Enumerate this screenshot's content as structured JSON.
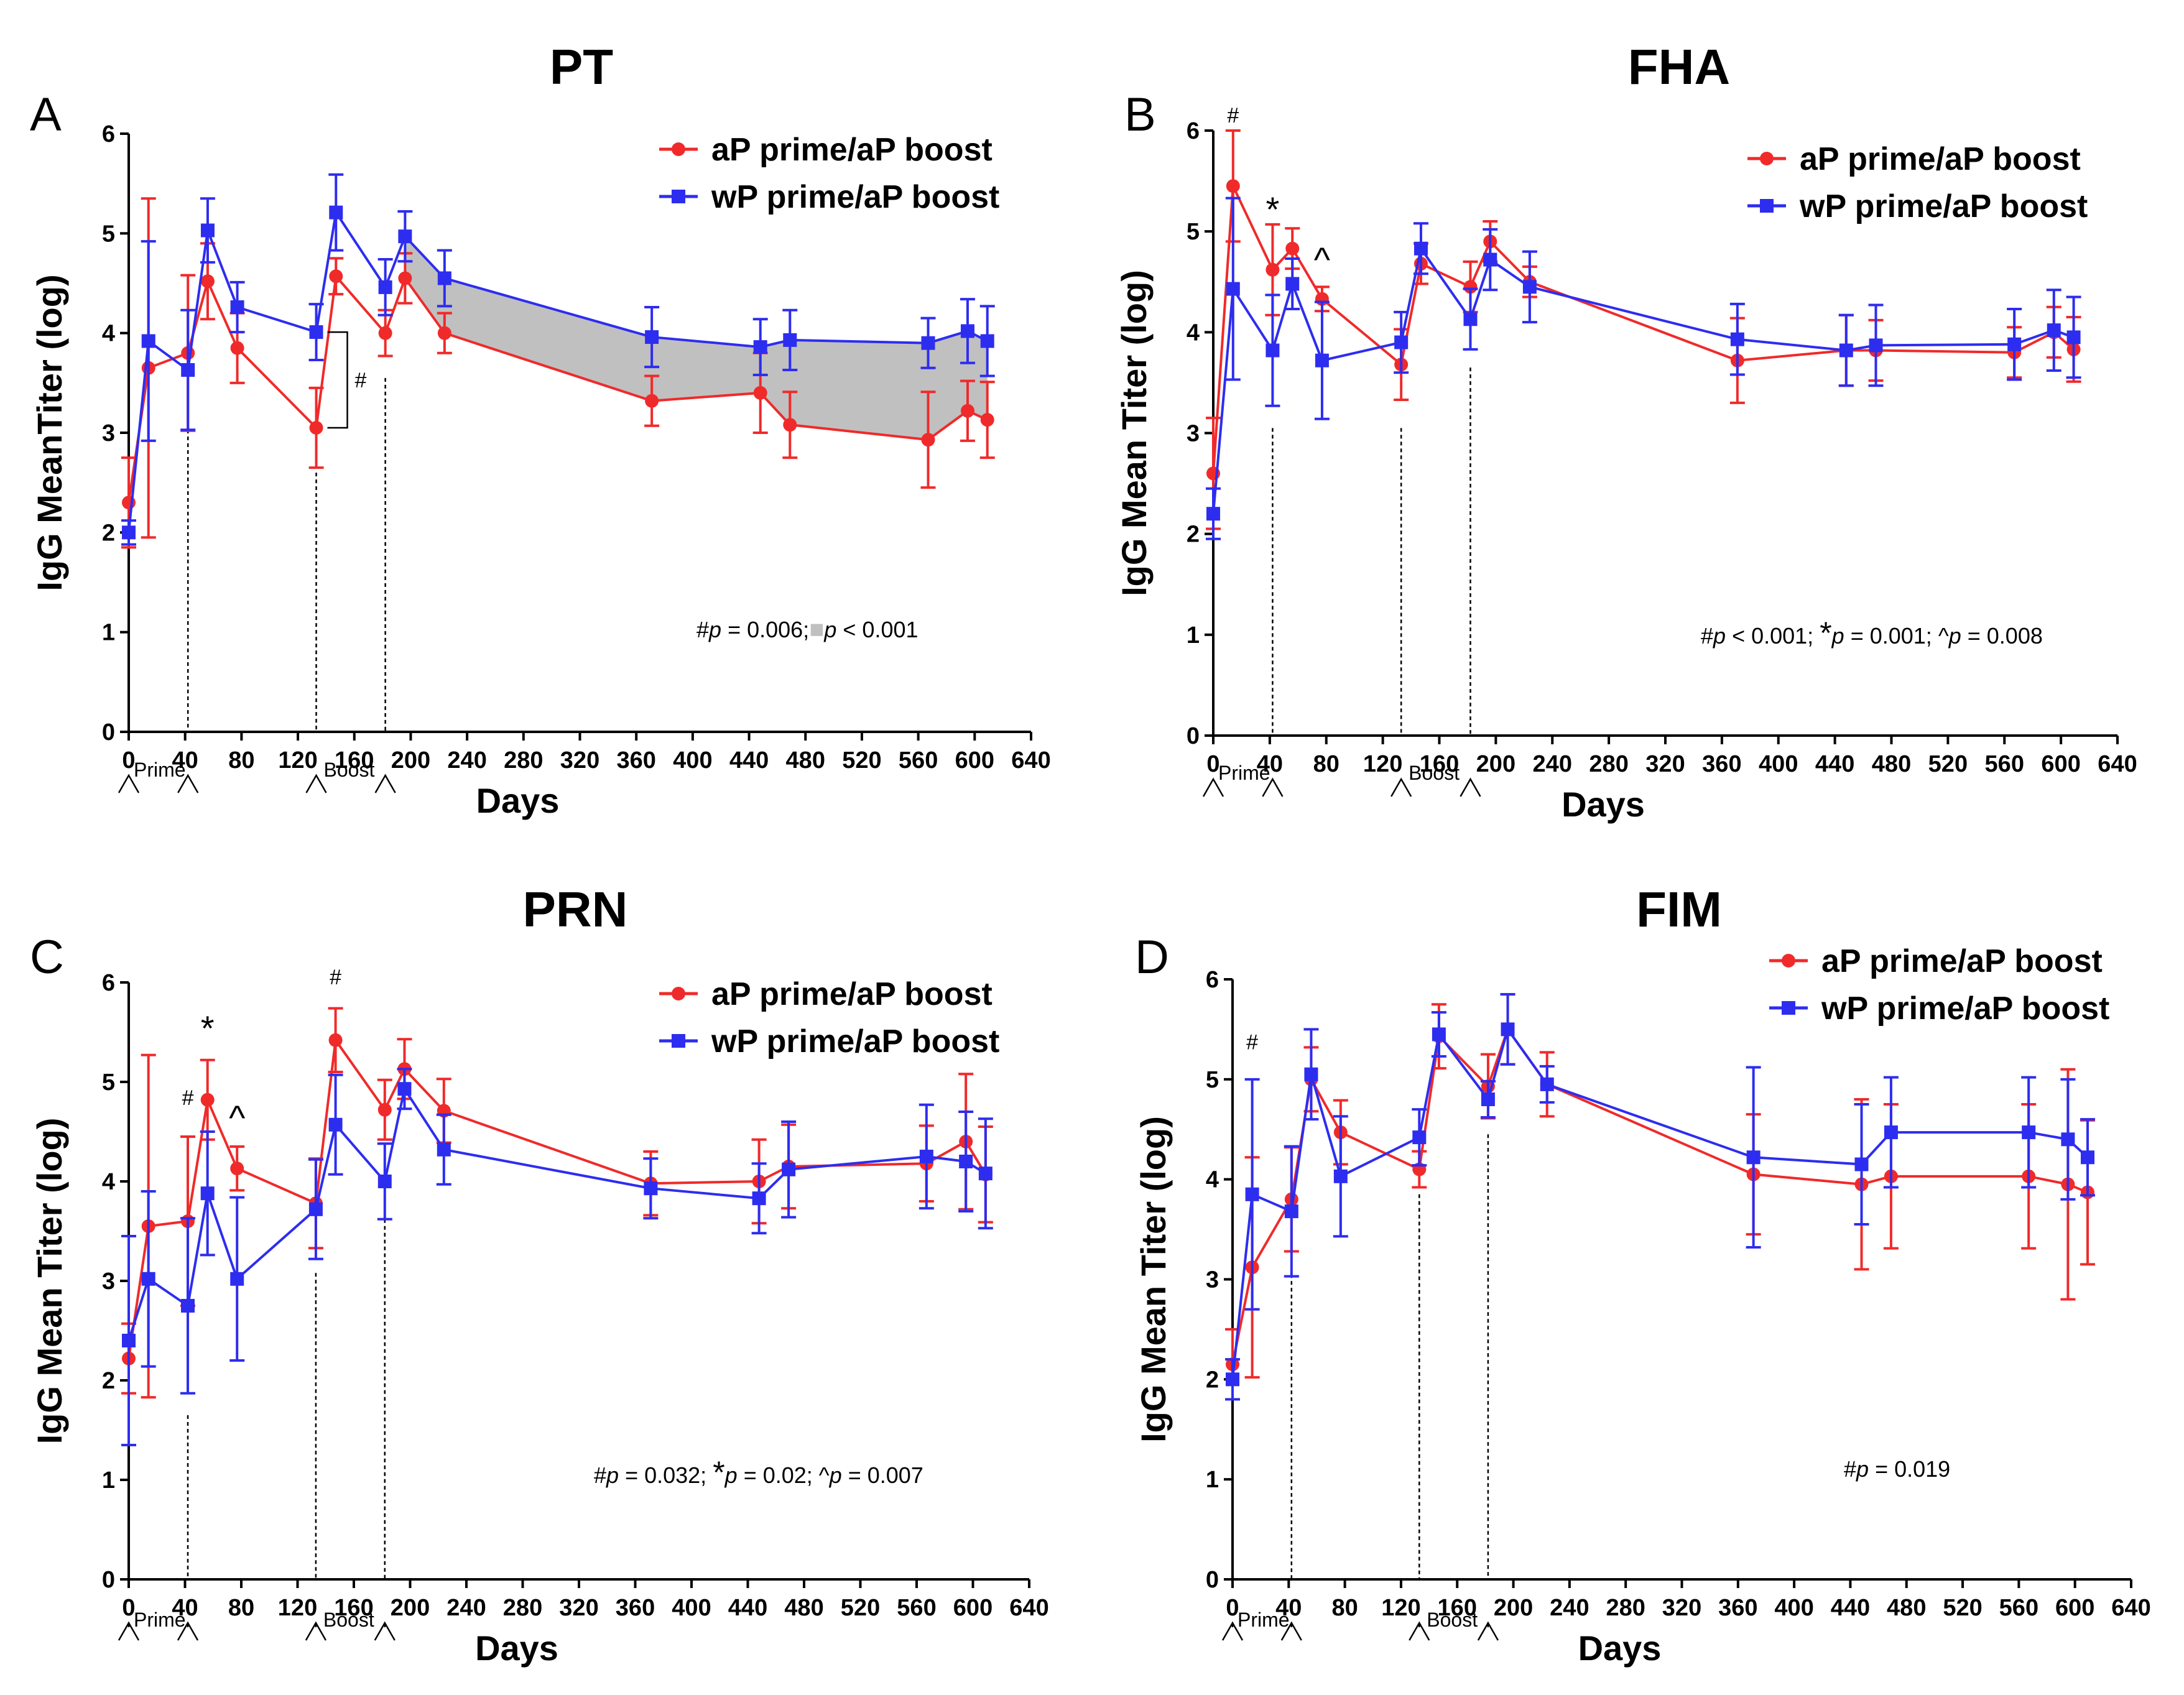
{
  "figure": {
    "legend_ap": "aP prime/aP boost",
    "legend_wp": "wP prime/aP boost",
    "xlabel": "Days",
    "colors": {
      "ap": "#f02a2a",
      "wp": "#2d2df0",
      "band": "#c0c0c0",
      "axis": "#000000"
    }
  },
  "chart_data": [
    {
      "id": "A",
      "type": "line",
      "letter": "A",
      "title": "PT",
      "ylabel": "IgG MeanTiter (log)",
      "xlabel": "Days",
      "xlim": [
        0,
        640
      ],
      "ylim": [
        0,
        6
      ],
      "xticks": [
        0,
        40,
        80,
        120,
        160,
        200,
        240,
        280,
        320,
        360,
        400,
        440,
        480,
        520,
        560,
        600,
        640
      ],
      "yticks": [
        0,
        1,
        2,
        3,
        4,
        5,
        6
      ],
      "legend_position": "top-right",
      "series": [
        {
          "name": "aP prime/aP boost",
          "key": "ap",
          "x": [
            0,
            14,
            42,
            56,
            77,
            133,
            147,
            182,
            196,
            224,
            371,
            448,
            469,
            567,
            595,
            609
          ],
          "y": [
            2.3,
            3.65,
            3.8,
            4.52,
            3.85,
            3.05,
            4.57,
            4.0,
            4.55,
            4.0,
            3.32,
            3.4,
            3.08,
            2.93,
            3.22,
            3.13
          ],
          "err": [
            0.45,
            1.7,
            0.78,
            0.38,
            0.35,
            0.4,
            0.18,
            0.23,
            0.25,
            0.2,
            0.25,
            0.4,
            0.33,
            0.48,
            0.3,
            0.38
          ]
        },
        {
          "name": "wP prime/aP boost",
          "key": "wp",
          "x": [
            0,
            14,
            42,
            56,
            77,
            133,
            147,
            182,
            196,
            224,
            371,
            448,
            469,
            567,
            595,
            609
          ],
          "y": [
            2.0,
            3.92,
            3.63,
            5.03,
            4.26,
            4.01,
            5.21,
            4.46,
            4.97,
            4.55,
            3.96,
            3.86,
            3.93,
            3.9,
            4.02,
            3.92
          ],
          "err": [
            0.12,
            1.0,
            0.6,
            0.32,
            0.25,
            0.28,
            0.38,
            0.28,
            0.25,
            0.28,
            0.3,
            0.28,
            0.3,
            0.25,
            0.32,
            0.35
          ]
        }
      ],
      "shaded_between": {
        "from_x": 196,
        "to_x": 609
      },
      "bracket": {
        "x": 133,
        "y_low": 3.05,
        "y_high": 4.01,
        "label": "#"
      },
      "annotations": [],
      "pvalue_parts": [
        {
          "text": "#",
          "italic": false
        },
        {
          "text": "p",
          "italic": true
        },
        {
          "text": " = 0.006;",
          "italic": false
        },
        {
          "text": "p",
          "italic": true,
          "band": true
        },
        {
          "text": " < 0.001",
          "italic": false
        }
      ],
      "dashed_lines": [
        {
          "x": 42,
          "y_top": 3.1
        },
        {
          "x": 133,
          "y_top": 2.6
        },
        {
          "x": 182,
          "y_top": 3.55
        }
      ],
      "arrows_x": [
        0,
        42,
        133,
        182
      ],
      "prime_label": "Prime",
      "boost_label": "Boost"
    },
    {
      "id": "B",
      "type": "line",
      "letter": "B",
      "title": "FHA",
      "ylabel": "IgG Mean Titer (log)",
      "xlabel": "Days",
      "xlim": [
        0,
        640
      ],
      "ylim": [
        0,
        6
      ],
      "xticks": [
        0,
        40,
        80,
        120,
        160,
        200,
        240,
        280,
        320,
        360,
        400,
        440,
        480,
        520,
        560,
        600,
        640
      ],
      "yticks": [
        0,
        1,
        2,
        3,
        4,
        5,
        6
      ],
      "legend_position": "top-right",
      "series": [
        {
          "name": "aP prime/aP boost",
          "key": "ap",
          "x": [
            0,
            14,
            42,
            56,
            77,
            133,
            147,
            182,
            196,
            224,
            371,
            448,
            469,
            567,
            595,
            609
          ],
          "y": [
            2.6,
            5.45,
            4.62,
            4.83,
            4.33,
            3.68,
            4.68,
            4.45,
            4.9,
            4.5,
            3.72,
            3.82,
            3.82,
            3.8,
            4.0,
            3.83
          ],
          "err": [
            0.55,
            0.55,
            0.45,
            0.2,
            0.12,
            0.35,
            0.2,
            0.25,
            0.2,
            0.15,
            0.42,
            0.35,
            0.3,
            0.25,
            0.25,
            0.32
          ]
        },
        {
          "name": "wP prime/aP boost",
          "key": "wp",
          "x": [
            0,
            14,
            42,
            56,
            77,
            133,
            147,
            182,
            196,
            224,
            371,
            448,
            469,
            567,
            595,
            609
          ],
          "y": [
            2.2,
            4.43,
            3.82,
            4.48,
            3.72,
            3.9,
            4.83,
            4.13,
            4.72,
            4.45,
            3.93,
            3.82,
            3.87,
            3.88,
            4.02,
            3.95
          ],
          "err": [
            0.25,
            0.9,
            0.55,
            0.25,
            0.58,
            0.3,
            0.25,
            0.3,
            0.3,
            0.35,
            0.35,
            0.35,
            0.4,
            0.35,
            0.4,
            0.4
          ]
        }
      ],
      "shaded_between": null,
      "bracket": null,
      "annotations": [
        {
          "x": 14,
          "y": 6.08,
          "text": "#",
          "big": false
        },
        {
          "x": 42,
          "y": 5.1,
          "text": "*",
          "big": true
        },
        {
          "x": 77,
          "y": 4.6,
          "text": "^",
          "big": true
        }
      ],
      "pvalue_parts": [
        {
          "text": "#",
          "italic": false
        },
        {
          "text": "p",
          "italic": true
        },
        {
          "text": " < 0.001; ",
          "italic": false
        },
        {
          "text": "*",
          "italic": false,
          "star": true
        },
        {
          "text": "p",
          "italic": true
        },
        {
          "text": " = 0.001; ",
          "italic": false
        },
        {
          "text": "^",
          "italic": false
        },
        {
          "text": "p",
          "italic": true
        },
        {
          "text": " = 0.008",
          "italic": false
        }
      ],
      "dashed_lines": [
        {
          "x": 42,
          "y_top": 3.05
        },
        {
          "x": 133,
          "y_top": 3.05
        },
        {
          "x": 182,
          "y_top": 3.65
        }
      ],
      "arrows_x": [
        0,
        42,
        133,
        182
      ],
      "prime_label": "Prime",
      "boost_label": "Boost"
    },
    {
      "id": "C",
      "type": "line",
      "letter": "C",
      "title": "PRN",
      "ylabel": "IgG Mean Titer (log)",
      "xlabel": "Days",
      "xlim": [
        0,
        640
      ],
      "ylim": [
        0,
        6
      ],
      "xticks": [
        0,
        40,
        80,
        120,
        160,
        200,
        240,
        280,
        320,
        360,
        400,
        440,
        480,
        520,
        560,
        600,
        640
      ],
      "yticks": [
        0,
        1,
        2,
        3,
        4,
        5,
        6
      ],
      "legend_position": "top-right",
      "series": [
        {
          "name": "aP prime/aP boost",
          "key": "ap",
          "x": [
            0,
            14,
            42,
            56,
            77,
            133,
            147,
            182,
            196,
            224,
            371,
            448,
            469,
            567,
            595,
            609
          ],
          "y": [
            2.22,
            3.55,
            3.6,
            4.82,
            4.13,
            3.78,
            5.42,
            4.72,
            5.13,
            4.71,
            3.98,
            4.0,
            4.15,
            4.18,
            4.4,
            4.07
          ],
          "err": [
            0.35,
            1.72,
            0.85,
            0.4,
            0.22,
            0.45,
            0.32,
            0.3,
            0.3,
            0.32,
            0.32,
            0.42,
            0.42,
            0.38,
            0.68,
            0.48
          ]
        },
        {
          "name": "wP prime/aP boost",
          "key": "wp",
          "x": [
            0,
            14,
            42,
            56,
            77,
            133,
            147,
            182,
            196,
            224,
            371,
            448,
            469,
            567,
            595,
            609
          ],
          "y": [
            2.4,
            3.02,
            2.75,
            3.88,
            3.02,
            3.72,
            4.57,
            4.0,
            4.93,
            4.32,
            3.93,
            3.83,
            4.12,
            4.25,
            4.2,
            4.08
          ],
          "err": [
            1.05,
            0.88,
            0.88,
            0.62,
            0.82,
            0.5,
            0.5,
            0.38,
            0.2,
            0.35,
            0.3,
            0.35,
            0.48,
            0.52,
            0.5,
            0.55
          ]
        }
      ],
      "shaded_between": null,
      "bracket": null,
      "annotations": [
        {
          "x": 42,
          "y": 4.77,
          "text": "#",
          "big": false
        },
        {
          "x": 56,
          "y": 5.42,
          "text": "*",
          "big": true
        },
        {
          "x": 77,
          "y": 4.52,
          "text": "^",
          "big": true
        },
        {
          "x": 147,
          "y": 5.98,
          "text": "#",
          "big": false
        }
      ],
      "pvalue_parts": [
        {
          "text": "#",
          "italic": false
        },
        {
          "text": "p",
          "italic": true
        },
        {
          "text": " = 0.032; ",
          "italic": false
        },
        {
          "text": "*",
          "italic": false,
          "star": true
        },
        {
          "text": "p",
          "italic": true
        },
        {
          "text": " = 0.02; ",
          "italic": false
        },
        {
          "text": "^",
          "italic": false
        },
        {
          "text": "p",
          "italic": true
        },
        {
          "text": " = 0.007",
          "italic": false
        }
      ],
      "dashed_lines": [
        {
          "x": 42,
          "y_top": 1.65
        },
        {
          "x": 133,
          "y_top": 3.08
        },
        {
          "x": 182,
          "y_top": 3.62
        }
      ],
      "arrows_x": [
        0,
        42,
        133,
        182
      ],
      "prime_label": "Prime",
      "boost_label": "Boost"
    },
    {
      "id": "D",
      "type": "line",
      "letter": "D",
      "title": "FIM",
      "ylabel": "IgG Mean Titer (log)",
      "xlabel": "Days",
      "xlim": [
        0,
        640
      ],
      "ylim": [
        0,
        6
      ],
      "xticks": [
        0,
        40,
        80,
        120,
        160,
        200,
        240,
        280,
        320,
        360,
        400,
        440,
        480,
        520,
        560,
        600,
        640
      ],
      "yticks": [
        0,
        1,
        2,
        3,
        4,
        5,
        6
      ],
      "legend_position": "top-right",
      "series": [
        {
          "name": "aP prime/aP boost",
          "key": "ap",
          "x": [
            0,
            14,
            42,
            56,
            77,
            133,
            147,
            182,
            196,
            224,
            371,
            448,
            469,
            567,
            595,
            609
          ],
          "y": [
            2.15,
            3.12,
            3.8,
            5.0,
            4.47,
            4.1,
            5.43,
            4.93,
            5.5,
            4.95,
            4.05,
            3.95,
            4.03,
            4.03,
            3.95,
            3.87
          ],
          "err": [
            0.35,
            1.1,
            0.52,
            0.32,
            0.32,
            0.18,
            0.32,
            0.32,
            0.35,
            0.32,
            0.6,
            0.85,
            0.72,
            0.72,
            1.15,
            0.72
          ]
        },
        {
          "name": "wP prime/aP boost",
          "key": "wp",
          "x": [
            0,
            14,
            42,
            56,
            77,
            133,
            147,
            182,
            196,
            224,
            371,
            448,
            469,
            567,
            595,
            609
          ],
          "y": [
            2.0,
            3.85,
            3.68,
            5.05,
            4.03,
            4.42,
            5.45,
            4.8,
            5.5,
            4.95,
            4.22,
            4.15,
            4.47,
            4.47,
            4.4,
            4.22
          ],
          "err": [
            0.2,
            1.15,
            0.65,
            0.45,
            0.6,
            0.28,
            0.22,
            0.18,
            0.35,
            0.18,
            0.9,
            0.6,
            0.55,
            0.55,
            0.6,
            0.38
          ]
        }
      ],
      "shaded_between": null,
      "bracket": null,
      "annotations": [
        {
          "x": 14,
          "y": 5.3,
          "text": "#",
          "big": false
        }
      ],
      "pvalue_parts": [
        {
          "text": "#",
          "italic": false
        },
        {
          "text": "p",
          "italic": true
        },
        {
          "text": " = 0.019",
          "italic": false
        }
      ],
      "dashed_lines": [
        {
          "x": 42,
          "y_top": 3.12
        },
        {
          "x": 133,
          "y_top": 3.85
        },
        {
          "x": 182,
          "y_top": 4.45
        }
      ],
      "arrows_x": [
        0,
        42,
        133,
        182
      ],
      "prime_label": "Prime",
      "boost_label": "Boost"
    }
  ]
}
